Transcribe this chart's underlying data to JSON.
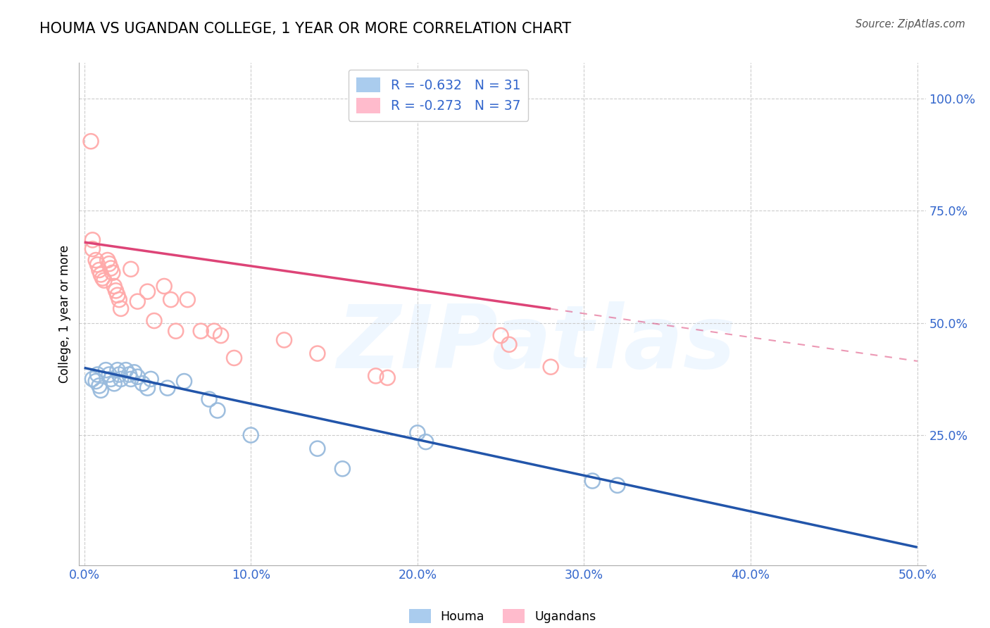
{
  "title": "HOUMA VS UGANDAN COLLEGE, 1 YEAR OR MORE CORRELATION CHART",
  "source": "Source: ZipAtlas.com",
  "ylabel": "College, 1 year or more",
  "x_tick_labels": [
    "0.0%",
    "10.0%",
    "20.0%",
    "30.0%",
    "40.0%",
    "50.0%"
  ],
  "x_tick_values": [
    0.0,
    0.1,
    0.2,
    0.3,
    0.4,
    0.5
  ],
  "y_tick_labels": [
    "100.0%",
    "75.0%",
    "50.0%",
    "25.0%"
  ],
  "y_tick_values": [
    1.0,
    0.75,
    0.5,
    0.25
  ],
  "xlim": [
    -0.003,
    0.505
  ],
  "ylim": [
    -0.04,
    1.08
  ],
  "houma_R": -0.632,
  "houma_N": 31,
  "ugandan_R": -0.273,
  "ugandan_N": 37,
  "houma_scatter_color": "#99BBDD",
  "ugandan_scatter_color": "#FFAAAA",
  "houma_line_color": "#2255AA",
  "ugandan_line_color": "#DD4477",
  "legend_text_color": "#3366CC",
  "tick_color": "#3366CC",
  "watermark": "ZIPatlas",
  "houma_x": [
    0.005,
    0.007,
    0.008,
    0.009,
    0.01,
    0.013,
    0.015,
    0.016,
    0.018,
    0.02,
    0.021,
    0.022,
    0.025,
    0.027,
    0.028,
    0.03,
    0.032,
    0.035,
    0.038,
    0.04,
    0.05,
    0.06,
    0.075,
    0.08,
    0.1,
    0.14,
    0.155,
    0.2,
    0.205,
    0.305,
    0.32
  ],
  "houma_y": [
    0.375,
    0.37,
    0.385,
    0.36,
    0.35,
    0.395,
    0.385,
    0.375,
    0.365,
    0.395,
    0.385,
    0.375,
    0.395,
    0.385,
    0.375,
    0.39,
    0.38,
    0.365,
    0.355,
    0.375,
    0.355,
    0.37,
    0.33,
    0.305,
    0.25,
    0.22,
    0.175,
    0.255,
    0.235,
    0.148,
    0.138
  ],
  "ugandan_x": [
    0.004,
    0.005,
    0.005,
    0.007,
    0.008,
    0.009,
    0.01,
    0.011,
    0.012,
    0.014,
    0.015,
    0.016,
    0.017,
    0.018,
    0.019,
    0.02,
    0.021,
    0.022,
    0.028,
    0.032,
    0.038,
    0.042,
    0.048,
    0.052,
    0.055,
    0.062,
    0.07,
    0.078,
    0.082,
    0.09,
    0.12,
    0.14,
    0.175,
    0.182,
    0.25,
    0.255,
    0.28
  ],
  "ugandan_y": [
    0.905,
    0.685,
    0.665,
    0.64,
    0.63,
    0.618,
    0.608,
    0.6,
    0.595,
    0.64,
    0.632,
    0.622,
    0.612,
    0.582,
    0.572,
    0.562,
    0.552,
    0.532,
    0.62,
    0.548,
    0.57,
    0.505,
    0.582,
    0.552,
    0.482,
    0.552,
    0.482,
    0.482,
    0.472,
    0.422,
    0.462,
    0.432,
    0.382,
    0.378,
    0.472,
    0.452,
    0.402
  ],
  "houma_line_x0": 0.0,
  "houma_line_x1": 0.5,
  "houma_line_y0": 0.4,
  "houma_line_y1": 0.0,
  "ugandan_line_x0": 0.0,
  "ugandan_line_solid_x1": 0.28,
  "ugandan_line_x1": 0.5,
  "ugandan_line_y0": 0.68,
  "ugandan_line_y1": 0.415
}
